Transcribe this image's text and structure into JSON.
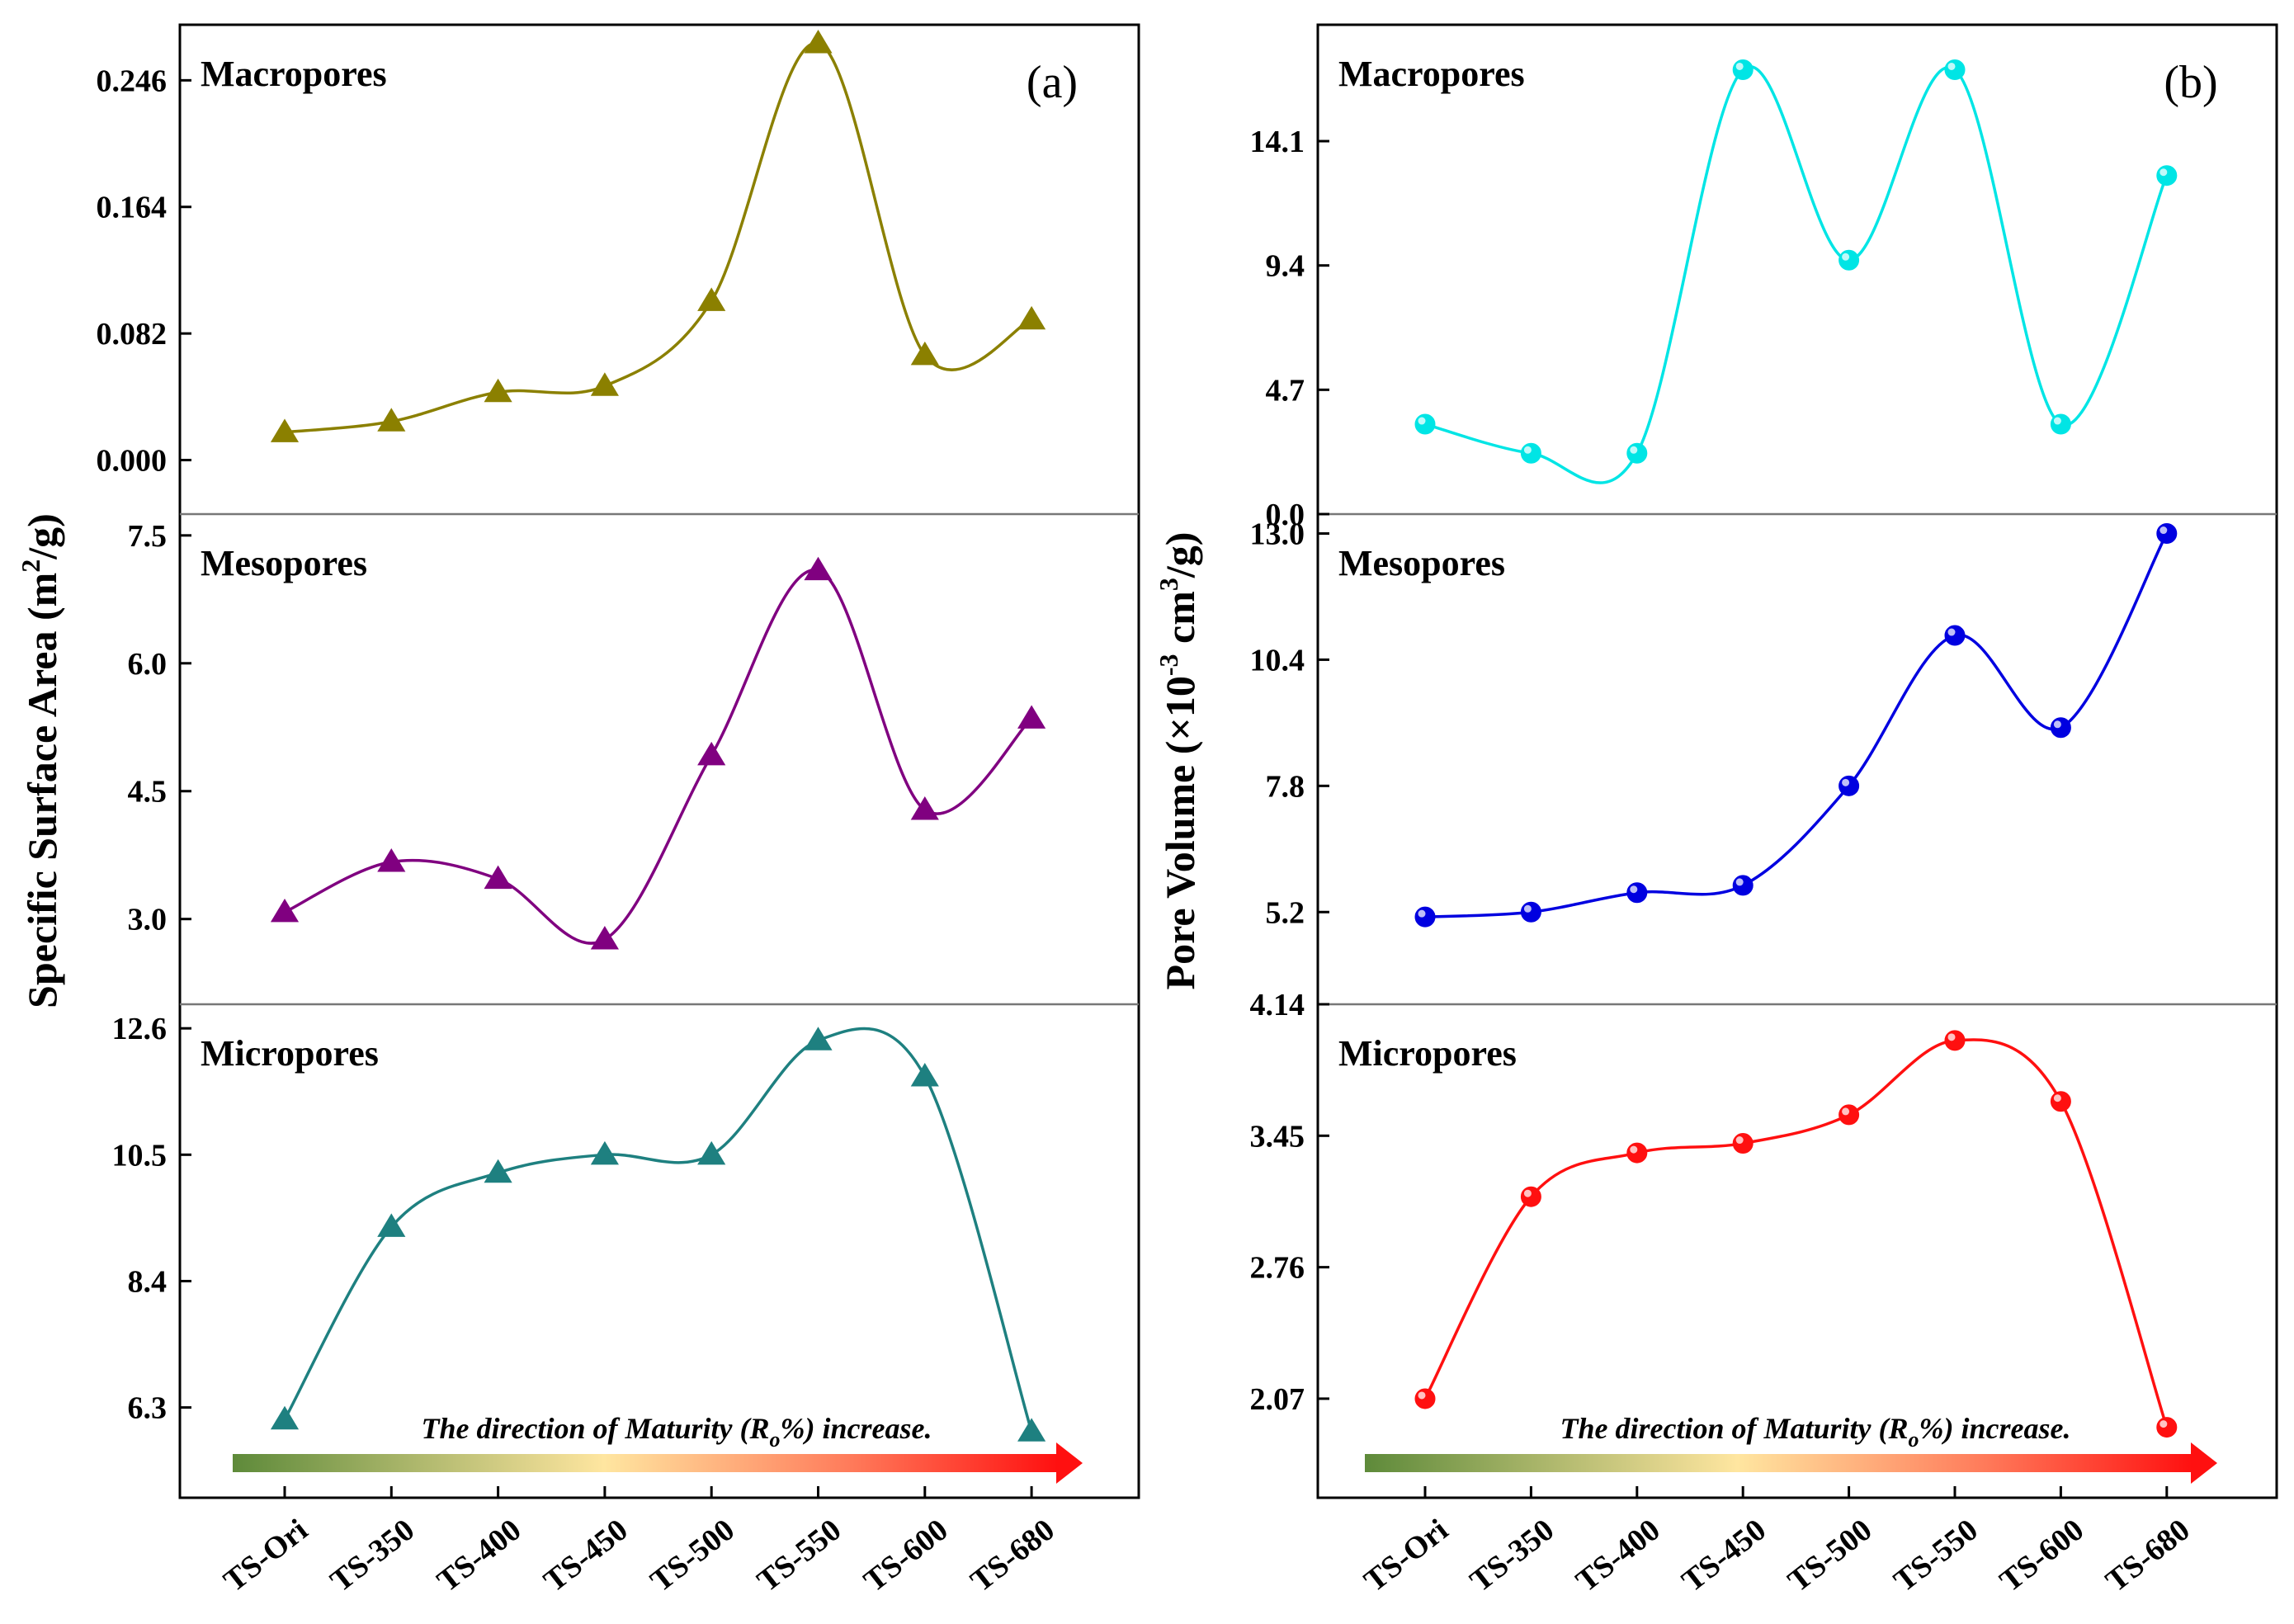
{
  "categories": [
    "TS-Ori",
    "TS-350",
    "TS-400",
    "TS-450",
    "TS-500",
    "TS-550",
    "TS-600",
    "TS-680"
  ],
  "arrow_text": {
    "prefix": "The direction of Maturity (R",
    "subscript": "o",
    "suffix": "%) increase."
  },
  "chart_data": [
    {
      "type": "line",
      "panel": "(a)",
      "ylabel": {
        "prefix": "Specific Surface Area (m",
        "superscript": "2",
        "suffix": "/g)"
      },
      "categories": [
        "TS-Ori",
        "TS-350",
        "TS-400",
        "TS-450",
        "TS-500",
        "TS-550",
        "TS-600",
        "TS-680"
      ],
      "marker": "triangle",
      "subplots": [
        {
          "title": "Macropores",
          "color": "#8B8000",
          "values": [
            0.018,
            0.025,
            0.044,
            0.048,
            0.103,
            0.27,
            0.068,
            0.091
          ],
          "ylim": [
            -0.035,
            0.282
          ],
          "ticks": [
            0.0,
            0.082,
            0.164,
            0.246
          ],
          "tick_labels": [
            "0.000",
            "0.082",
            "0.164",
            "0.246"
          ]
        },
        {
          "title": "Mesopores",
          "color": "#800080",
          "values": [
            3.08,
            3.67,
            3.47,
            2.76,
            4.92,
            7.09,
            4.28,
            5.35
          ],
          "ylim": [
            2.0,
            7.75
          ],
          "ticks": [
            3.0,
            4.5,
            6.0,
            7.5
          ],
          "tick_labels": [
            "3.0",
            "4.5",
            "6.0",
            "7.5"
          ]
        },
        {
          "title": "Micropores",
          "color": "#1E8080",
          "values": [
            6.1,
            9.3,
            10.2,
            10.5,
            10.5,
            12.4,
            11.8,
            5.9
          ],
          "ylim": [
            4.8,
            13.0
          ],
          "ticks": [
            6.3,
            8.4,
            10.5,
            12.6
          ],
          "tick_labels": [
            "6.3",
            "8.4",
            "10.5",
            "12.6"
          ]
        }
      ]
    },
    {
      "type": "line",
      "panel": "(b)",
      "ylabel": {
        "prefix": "Pore Volume (×10",
        "superscript": "-3",
        "mid": " cm",
        "superscript2": "3",
        "suffix": "/g)"
      },
      "categories": [
        "TS-Ori",
        "TS-350",
        "TS-400",
        "TS-450",
        "TS-500",
        "TS-550",
        "TS-600",
        "TS-680"
      ],
      "marker": "sphere",
      "subplots": [
        {
          "title": "Macropores",
          "color": "#00E5E5",
          "values": [
            3.4,
            2.3,
            2.3,
            16.8,
            9.6,
            16.8,
            3.4,
            12.8
          ],
          "ylim": [
            0.0,
            18.5
          ],
          "ticks": [
            0.0,
            4.7,
            9.4,
            14.1
          ],
          "tick_labels": [
            "0.0",
            "4.7",
            "9.4",
            "14.1"
          ]
        },
        {
          "title": "Mesopores",
          "color": "#0000E0",
          "values": [
            5.1,
            5.2,
            5.6,
            5.75,
            7.8,
            10.9,
            9.0,
            13.0
          ],
          "ylim": [
            3.3,
            13.4
          ],
          "ticks": [
            5.2,
            7.8,
            10.4,
            13.0
          ],
          "tick_labels": [
            "5.2",
            "7.8",
            "10.4",
            "13.0"
          ]
        },
        {
          "title": "Micropores",
          "color": "#FF1010",
          "values": [
            2.07,
            3.13,
            3.36,
            3.41,
            3.56,
            3.95,
            3.63,
            1.92
          ],
          "ylim": [
            1.55,
            4.14
          ],
          "ticks": [
            2.07,
            2.76,
            3.45,
            4.14
          ],
          "tick_labels": [
            "2.07",
            "2.76",
            "3.45",
            "4.14"
          ]
        }
      ]
    }
  ]
}
